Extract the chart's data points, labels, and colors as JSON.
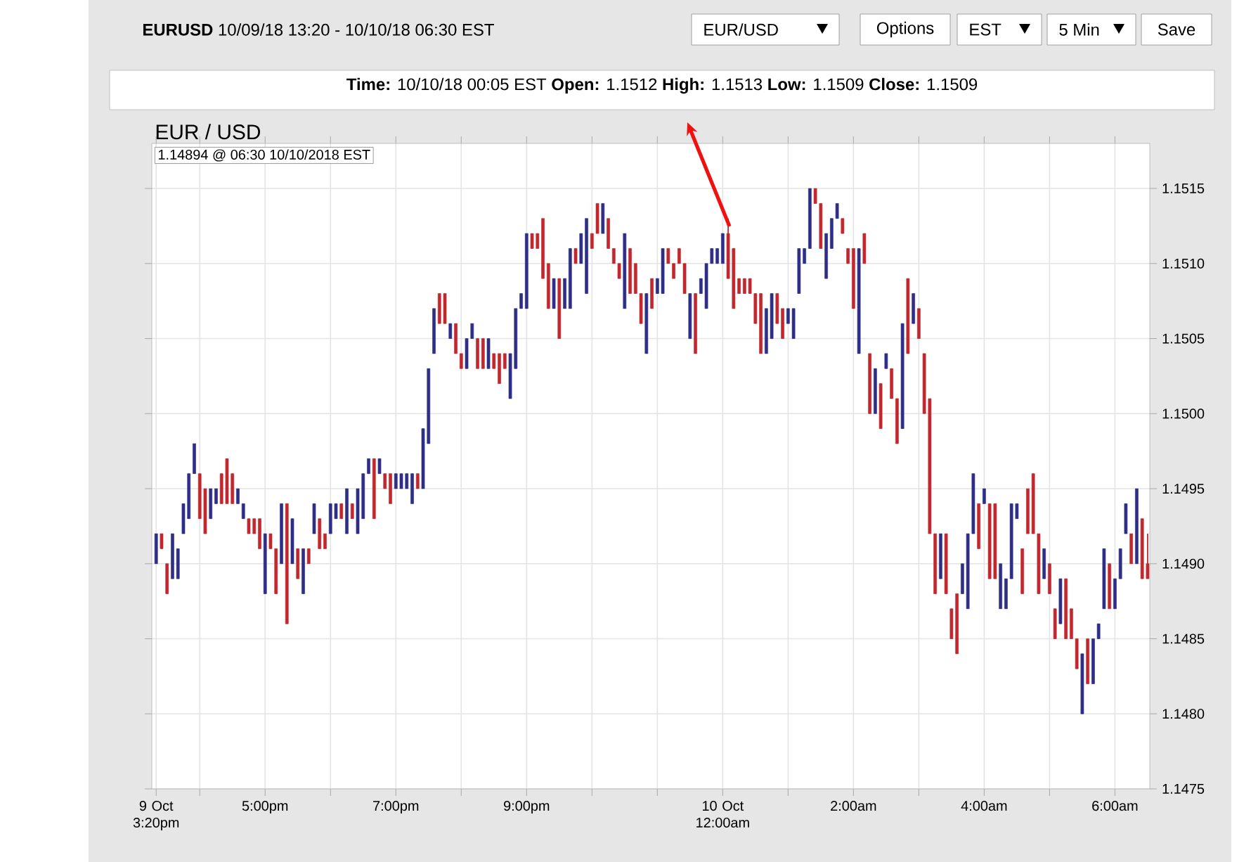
{
  "chart_data": {
    "type": "candlestick",
    "title": "EUR / USD",
    "subtitle": "**EURUSD** 10/09/18 13:20 - 10/10/18 06:30 EST",
    "annotations": [
      "1.14894 @ 06:30  10/10/2018 EST",
      "EUR/USD",
      "Options",
      "EST",
      "5 Min",
      "Save",
      "**Time:** 10/10/18 00:05 EST **Open:** 1.1512 **High:** 1.1513 **Low:** 1.1509 **Close:** 1.1509"
    ],
    "grid": true,
    "xlim": [
      "2018-10-09T15:16",
      "2018-10-10T06:32"
    ],
    "ylim": [
      1.1475,
      1.1518
    ],
    "xticks": [
      {
        "value": "2018-10-09T15:20",
        "label": "9 Oct 3:20pm"
      },
      {
        "value": "2018-10-09T16:00",
        "label": null
      },
      {
        "value": "2018-10-09T17:00",
        "label": "5:00pm"
      },
      {
        "value": "2018-10-09T18:00",
        "label": null
      },
      {
        "value": "2018-10-09T19:00",
        "label": "7:00pm"
      },
      {
        "value": "2018-10-09T20:00",
        "label": null
      },
      {
        "value": "2018-10-09T21:00",
        "label": "9:00pm"
      },
      {
        "value": "2018-10-09T22:00",
        "label": null
      },
      {
        "value": "2018-10-09T23:00",
        "label": null
      },
      {
        "value": "2018-10-10T00:00",
        "label": "10 Oct 12:00am"
      },
      {
        "value": "2018-10-10T01:00",
        "label": null
      },
      {
        "value": "2018-10-10T02:00",
        "label": "2:00am"
      },
      {
        "value": "2018-10-10T03:00",
        "label": null
      },
      {
        "value": "2018-10-10T04:00",
        "label": "4:00am"
      },
      {
        "value": "2018-10-10T05:00",
        "label": null
      },
      {
        "value": "2018-10-10T06:00",
        "label": "6:00am"
      }
    ],
    "yticks": [
      1.1475,
      {
        "value": 1.148,
        "label": "1.1480"
      },
      1.1485,
      {
        "value": 1.149,
        "label": "1.1490"
      },
      1.1495,
      {
        "value": 1.15,
        "label": "1.1500"
      },
      1.1505,
      {
        "value": 1.151,
        "label": "1.1510"
      },
      1.1515
    ],
    "x": [
      "2018-10-09T15:20",
      "2018-10-09T15:25",
      "2018-10-09T15:30",
      "2018-10-09T15:35",
      "2018-10-09T15:40",
      "2018-10-09T15:45",
      "2018-10-09T15:50",
      "2018-10-09T15:55",
      "2018-10-09T16:00",
      "2018-10-09T16:05",
      "2018-10-09T16:10",
      "2018-10-09T16:15",
      "2018-10-09T16:20",
      "2018-10-09T16:25",
      "2018-10-09T16:30",
      "2018-10-09T16:35",
      "2018-10-09T16:40",
      "2018-10-09T16:45",
      "2018-10-09T16:50",
      "2018-10-09T16:55",
      "2018-10-09T17:00",
      "2018-10-09T17:05",
      "2018-10-09T17:10",
      "2018-10-09T17:15",
      "2018-10-09T17:20",
      "2018-10-09T17:25",
      "2018-10-09T17:30",
      "2018-10-09T17:35",
      "2018-10-09T17:40",
      "2018-10-09T17:45",
      "2018-10-09T17:50",
      "2018-10-09T17:55",
      "2018-10-09T18:00",
      "2018-10-09T18:05",
      "2018-10-09T18:10",
      "2018-10-09T18:15",
      "2018-10-09T18:20",
      "2018-10-09T18:25",
      "2018-10-09T18:30",
      "2018-10-09T18:35",
      "2018-10-09T18:40",
      "2018-10-09T18:45",
      "2018-10-09T18:50",
      "2018-10-09T18:55",
      "2018-10-09T19:00",
      "2018-10-09T19:05",
      "2018-10-09T19:10",
      "2018-10-09T19:15",
      "2018-10-09T19:20",
      "2018-10-09T19:25",
      "2018-10-09T19:30",
      "2018-10-09T19:35",
      "2018-10-09T19:40",
      "2018-10-09T19:45",
      "2018-10-09T19:50",
      "2018-10-09T19:55",
      "2018-10-09T20:00",
      "2018-10-09T20:05",
      "2018-10-09T20:10",
      "2018-10-09T20:15",
      "2018-10-09T20:20",
      "2018-10-09T20:25",
      "2018-10-09T20:30",
      "2018-10-09T20:35",
      "2018-10-09T20:40",
      "2018-10-09T20:45",
      "2018-10-09T20:50",
      "2018-10-09T20:55",
      "2018-10-09T21:00",
      "2018-10-09T21:05",
      "2018-10-09T21:10",
      "2018-10-09T21:15",
      "2018-10-09T21:20",
      "2018-10-09T21:25",
      "2018-10-09T21:30",
      "2018-10-09T21:35",
      "2018-10-09T21:40",
      "2018-10-09T21:45",
      "2018-10-09T21:50",
      "2018-10-09T21:55",
      "2018-10-09T22:00",
      "2018-10-09T22:05",
      "2018-10-09T22:10",
      "2018-10-09T22:15",
      "2018-10-09T22:20",
      "2018-10-09T22:25",
      "2018-10-09T22:30",
      "2018-10-09T22:35",
      "2018-10-09T22:40",
      "2018-10-09T22:45",
      "2018-10-09T22:50",
      "2018-10-09T22:55",
      "2018-10-09T23:00",
      "2018-10-09T23:05",
      "2018-10-09T23:10",
      "2018-10-09T23:15",
      "2018-10-09T23:20",
      "2018-10-09T23:25",
      "2018-10-09T23:30",
      "2018-10-09T23:35",
      "2018-10-09T23:40",
      "2018-10-09T23:45",
      "2018-10-09T23:50",
      "2018-10-09T23:55",
      "2018-10-10T00:00",
      "2018-10-10T00:05",
      "2018-10-10T00:10",
      "2018-10-10T00:15",
      "2018-10-10T00:20",
      "2018-10-10T00:25",
      "2018-10-10T00:30",
      "2018-10-10T00:35",
      "2018-10-10T00:40",
      "2018-10-10T00:45",
      "2018-10-10T00:50",
      "2018-10-10T00:55",
      "2018-10-10T01:00",
      "2018-10-10T01:05",
      "2018-10-10T01:10",
      "2018-10-10T01:15",
      "2018-10-10T01:20",
      "2018-10-10T01:25",
      "2018-10-10T01:30",
      "2018-10-10T01:35",
      "2018-10-10T01:40",
      "2018-10-10T01:45",
      "2018-10-10T01:50",
      "2018-10-10T01:55",
      "2018-10-10T02:00",
      "2018-10-10T02:05",
      "2018-10-10T02:10",
      "2018-10-10T02:15",
      "2018-10-10T02:20",
      "2018-10-10T02:25",
      "2018-10-10T02:30",
      "2018-10-10T02:35",
      "2018-10-10T02:40",
      "2018-10-10T02:45",
      "2018-10-10T02:50",
      "2018-10-10T02:55",
      "2018-10-10T03:00",
      "2018-10-10T03:05",
      "2018-10-10T03:10",
      "2018-10-10T03:15",
      "2018-10-10T03:20",
      "2018-10-10T03:25",
      "2018-10-10T03:30",
      "2018-10-10T03:35",
      "2018-10-10T03:40",
      "2018-10-10T03:45",
      "2018-10-10T03:50",
      "2018-10-10T03:55",
      "2018-10-10T04:00",
      "2018-10-10T04:05",
      "2018-10-10T04:10",
      "2018-10-10T04:15",
      "2018-10-10T04:20",
      "2018-10-10T04:25",
      "2018-10-10T04:30",
      "2018-10-10T04:35",
      "2018-10-10T04:40",
      "2018-10-10T04:45",
      "2018-10-10T04:50",
      "2018-10-10T04:55",
      "2018-10-10T05:00",
      "2018-10-10T05:05",
      "2018-10-10T05:10",
      "2018-10-10T05:15",
      "2018-10-10T05:20",
      "2018-10-10T05:25",
      "2018-10-10T05:30",
      "2018-10-10T05:35",
      "2018-10-10T05:40",
      "2018-10-10T05:45",
      "2018-10-10T05:50",
      "2018-10-10T05:55",
      "2018-10-10T06:00",
      "2018-10-10T06:05",
      "2018-10-10T06:10",
      "2018-10-10T06:15",
      "2018-10-10T06:20",
      "2018-10-10T06:25",
      "2018-10-10T06:30"
    ],
    "ohlc": [
      [
        1.149,
        1.1492,
        1.149,
        1.1492
      ],
      [
        1.1492,
        1.1492,
        1.1491,
        1.1491
      ],
      [
        1.149,
        1.149,
        1.1488,
        1.1488
      ],
      [
        1.1489,
        1.1492,
        1.1489,
        1.1492
      ],
      [
        1.1489,
        1.1491,
        1.1489,
        1.1491
      ],
      [
        1.1492,
        1.1494,
        1.1492,
        1.1494
      ],
      [
        1.1493,
        1.1496,
        1.1493,
        1.1496
      ],
      [
        1.1496,
        1.1498,
        1.1496,
        1.1498
      ],
      [
        1.1496,
        1.1496,
        1.1493,
        1.1493
      ],
      [
        1.1495,
        1.1495,
        1.1492,
        1.1492
      ],
      [
        1.1493,
        1.1495,
        1.1493,
        1.1495
      ],
      [
        1.1494,
        1.1495,
        1.1494,
        1.1495
      ],
      [
        1.1496,
        1.1496,
        1.1494,
        1.1494
      ],
      [
        1.1497,
        1.1497,
        1.1494,
        1.1494
      ],
      [
        1.1496,
        1.1496,
        1.1494,
        1.1494
      ],
      [
        1.1494,
        1.1495,
        1.1494,
        1.1495
      ],
      [
        1.1493,
        1.1494,
        1.1493,
        1.1494
      ],
      [
        1.1493,
        1.1493,
        1.1492,
        1.1492
      ],
      [
        1.1493,
        1.1493,
        1.1492,
        1.1492
      ],
      [
        1.1493,
        1.1493,
        1.1491,
        1.1491
      ],
      [
        1.1488,
        1.1492,
        1.1488,
        1.1492
      ],
      [
        1.1492,
        1.1492,
        1.1491,
        1.1491
      ],
      [
        1.1491,
        1.1491,
        1.1488,
        1.1488
      ],
      [
        1.149,
        1.1494,
        1.149,
        1.1494
      ],
      [
        1.1494,
        1.1494,
        1.1486,
        1.1486
      ],
      [
        1.149,
        1.1493,
        1.149,
        1.1493
      ],
      [
        1.1491,
        1.1491,
        1.1489,
        1.1489
      ],
      [
        1.1488,
        1.1491,
        1.1488,
        1.1491
      ],
      [
        1.1491,
        1.1491,
        1.149,
        1.149
      ],
      [
        1.1492,
        1.1494,
        1.1492,
        1.1494
      ],
      [
        1.1493,
        1.1493,
        1.1491,
        1.1491
      ],
      [
        1.1492,
        1.1492,
        1.1491,
        1.1491
      ],
      [
        1.1492,
        1.1494,
        1.1492,
        1.1494
      ],
      [
        1.1493,
        1.1494,
        1.1493,
        1.1494
      ],
      [
        1.1494,
        1.1494,
        1.1493,
        1.1493
      ],
      [
        1.1492,
        1.1495,
        1.1492,
        1.1495
      ],
      [
        1.1494,
        1.1494,
        1.1493,
        1.1493
      ],
      [
        1.1492,
        1.1495,
        1.1492,
        1.1495
      ],
      [
        1.1493,
        1.1496,
        1.1493,
        1.1496
      ],
      [
        1.1496,
        1.1497,
        1.1496,
        1.1497
      ],
      [
        1.1497,
        1.1497,
        1.1493,
        1.1493
      ],
      [
        1.1496,
        1.1497,
        1.1496,
        1.1497
      ],
      [
        1.1496,
        1.1496,
        1.1495,
        1.1495
      ],
      [
        1.1496,
        1.1496,
        1.1494,
        1.1494
      ],
      [
        1.1495,
        1.1496,
        1.1495,
        1.1496
      ],
      [
        1.1495,
        1.1496,
        1.1495,
        1.1496
      ],
      [
        1.1495,
        1.1496,
        1.1495,
        1.1496
      ],
      [
        1.1494,
        1.1496,
        1.1494,
        1.1496
      ],
      [
        1.1496,
        1.1496,
        1.1495,
        1.1495
      ],
      [
        1.1495,
        1.1499,
        1.1495,
        1.1499
      ],
      [
        1.1498,
        1.1503,
        1.1498,
        1.1503
      ],
      [
        1.1504,
        1.1507,
        1.1504,
        1.1507
      ],
      [
        1.1508,
        1.1508,
        1.1506,
        1.1506
      ],
      [
        1.1508,
        1.1508,
        1.1506,
        1.1506
      ],
      [
        1.1505,
        1.1506,
        1.1505,
        1.1506
      ],
      [
        1.1506,
        1.1506,
        1.1504,
        1.1504
      ],
      [
        1.1504,
        1.1504,
        1.1503,
        1.1503
      ],
      [
        1.1503,
        1.1505,
        1.1503,
        1.1505
      ],
      [
        1.1505,
        1.1506,
        1.1505,
        1.1506
      ],
      [
        1.1505,
        1.1505,
        1.1503,
        1.1503
      ],
      [
        1.1505,
        1.1505,
        1.1503,
        1.1503
      ],
      [
        1.1503,
        1.1505,
        1.1503,
        1.1505
      ],
      [
        1.1504,
        1.1504,
        1.1503,
        1.1503
      ],
      [
        1.1504,
        1.1504,
        1.1502,
        1.1502
      ],
      [
        1.1504,
        1.1504,
        1.1503,
        1.1503
      ],
      [
        1.1501,
        1.1504,
        1.1501,
        1.1504
      ],
      [
        1.1503,
        1.1507,
        1.1503,
        1.1507
      ],
      [
        1.1507,
        1.1508,
        1.1507,
        1.1508
      ],
      [
        1.1507,
        1.1512,
        1.1507,
        1.1512
      ],
      [
        1.1512,
        1.1512,
        1.1511,
        1.1511
      ],
      [
        1.1512,
        1.1512,
        1.1511,
        1.1511
      ],
      [
        1.1513,
        1.1513,
        1.1509,
        1.1509
      ],
      [
        1.151,
        1.151,
        1.1507,
        1.1507
      ],
      [
        1.1507,
        1.1509,
        1.1507,
        1.1509
      ],
      [
        1.1509,
        1.1509,
        1.1505,
        1.1505
      ],
      [
        1.1507,
        1.1509,
        1.1507,
        1.1509
      ],
      [
        1.1507,
        1.1511,
        1.1507,
        1.1511
      ],
      [
        1.1511,
        1.1511,
        1.151,
        1.151
      ],
      [
        1.151,
        1.1512,
        1.151,
        1.1512
      ],
      [
        1.1508,
        1.1513,
        1.1508,
        1.1513
      ],
      [
        1.1512,
        1.1512,
        1.1511,
        1.1511
      ],
      [
        1.1514,
        1.1514,
        1.1512,
        1.1512
      ],
      [
        1.1512,
        1.1514,
        1.1512,
        1.1514
      ],
      [
        1.1513,
        1.1513,
        1.1511,
        1.1511
      ],
      [
        1.1511,
        1.1511,
        1.151,
        1.151
      ],
      [
        1.151,
        1.151,
        1.1509,
        1.1509
      ],
      [
        1.1507,
        1.1512,
        1.1507,
        1.1512
      ],
      [
        1.1511,
        1.1511,
        1.1508,
        1.1508
      ],
      [
        1.151,
        1.151,
        1.1508,
        1.1508
      ],
      [
        1.1508,
        1.1508,
        1.1506,
        1.1506
      ],
      [
        1.1504,
        1.1508,
        1.1504,
        1.1508
      ],
      [
        1.1509,
        1.1509,
        1.1507,
        1.1507
      ],
      [
        1.1508,
        1.1509,
        1.1508,
        1.1509
      ],
      [
        1.1508,
        1.1511,
        1.1508,
        1.1511
      ],
      [
        1.1511,
        1.1511,
        1.151,
        1.151
      ],
      [
        1.151,
        1.151,
        1.1509,
        1.1509
      ],
      [
        1.1511,
        1.1511,
        1.151,
        1.151
      ],
      [
        1.151,
        1.151,
        1.1508,
        1.1508
      ],
      [
        1.1505,
        1.1508,
        1.1505,
        1.1508
      ],
      [
        1.1508,
        1.1508,
        1.1504,
        1.1504
      ],
      [
        1.1508,
        1.1509,
        1.1508,
        1.1509
      ],
      [
        1.1507,
        1.151,
        1.1507,
        1.151
      ],
      [
        1.151,
        1.1511,
        1.151,
        1.1511
      ],
      [
        1.151,
        1.1511,
        1.151,
        1.1511
      ],
      [
        1.151,
        1.1512,
        1.151,
        1.1512
      ],
      [
        1.1512,
        1.1513,
        1.1509,
        1.1509
      ],
      [
        1.1511,
        1.1511,
        1.1507,
        1.1507
      ],
      [
        1.1509,
        1.1509,
        1.1508,
        1.1508
      ],
      [
        1.1509,
        1.1509,
        1.1508,
        1.1508
      ],
      [
        1.1509,
        1.1509,
        1.1508,
        1.1508
      ],
      [
        1.1508,
        1.1508,
        1.1506,
        1.1506
      ],
      [
        1.1508,
        1.1508,
        1.1504,
        1.1504
      ],
      [
        1.1504,
        1.1507,
        1.1504,
        1.1507
      ],
      [
        1.1505,
        1.1508,
        1.1505,
        1.1508
      ],
      [
        1.1508,
        1.1508,
        1.1506,
        1.1506
      ],
      [
        1.1507,
        1.1507,
        1.1505,
        1.1505
      ],
      [
        1.1506,
        1.1507,
        1.1506,
        1.1507
      ],
      [
        1.1505,
        1.1507,
        1.1505,
        1.1507
      ],
      [
        1.1508,
        1.1511,
        1.1508,
        1.1511
      ],
      [
        1.151,
        1.1511,
        1.151,
        1.1511
      ],
      [
        1.1511,
        1.1515,
        1.1511,
        1.1515
      ],
      [
        1.1515,
        1.1515,
        1.1514,
        1.1514
      ],
      [
        1.1514,
        1.1514,
        1.1511,
        1.1511
      ],
      [
        1.1509,
        1.1512,
        1.1509,
        1.1512
      ],
      [
        1.1511,
        1.1513,
        1.1511,
        1.1513
      ],
      [
        1.1513,
        1.1514,
        1.1513,
        1.1514
      ],
      [
        1.1513,
        1.1513,
        1.1512,
        1.1512
      ],
      [
        1.1511,
        1.1511,
        1.151,
        1.151
      ],
      [
        1.1511,
        1.1511,
        1.1507,
        1.1507
      ],
      [
        1.1504,
        1.1511,
        1.1504,
        1.1511
      ],
      [
        1.1512,
        1.1512,
        1.151,
        1.151
      ],
      [
        1.1504,
        1.1504,
        1.15,
        1.15
      ],
      [
        1.15,
        1.1503,
        1.15,
        1.1503
      ],
      [
        1.1502,
        1.1502,
        1.1499,
        1.1499
      ],
      [
        1.1503,
        1.1504,
        1.1503,
        1.1504
      ],
      [
        1.1503,
        1.1503,
        1.1501,
        1.1501
      ],
      [
        1.1501,
        1.1501,
        1.1498,
        1.1498
      ],
      [
        1.1499,
        1.1506,
        1.1499,
        1.1506
      ],
      [
        1.1509,
        1.1509,
        1.1504,
        1.1504
      ],
      [
        1.1506,
        1.1508,
        1.1506,
        1.1508
      ],
      [
        1.1507,
        1.1507,
        1.1505,
        1.1505
      ],
      [
        1.1504,
        1.1504,
        1.15,
        1.15
      ],
      [
        1.1501,
        1.1501,
        1.1492,
        1.1492
      ],
      [
        1.1492,
        1.1492,
        1.1488,
        1.1488
      ],
      [
        1.1489,
        1.1492,
        1.1489,
        1.1492
      ],
      [
        1.1492,
        1.1492,
        1.1488,
        1.1488
      ],
      [
        1.1487,
        1.1487,
        1.1485,
        1.1485
      ],
      [
        1.1488,
        1.1488,
        1.1484,
        1.1484
      ],
      [
        1.1488,
        1.149,
        1.1488,
        1.149
      ],
      [
        1.1487,
        1.1492,
        1.1487,
        1.1492
      ],
      [
        1.1492,
        1.1496,
        1.1492,
        1.1496
      ],
      [
        1.1494,
        1.1494,
        1.1491,
        1.1491
      ],
      [
        1.1494,
        1.1495,
        1.1494,
        1.1495
      ],
      [
        1.1494,
        1.1494,
        1.1489,
        1.1489
      ],
      [
        1.1494,
        1.1494,
        1.1489,
        1.1489
      ],
      [
        1.1487,
        1.149,
        1.1487,
        1.149
      ],
      [
        1.1487,
        1.1489,
        1.1487,
        1.1489
      ],
      [
        1.1489,
        1.1494,
        1.1489,
        1.1494
      ],
      [
        1.1493,
        1.1494,
        1.1493,
        1.1494
      ],
      [
        1.1491,
        1.1491,
        1.1488,
        1.1488
      ],
      [
        1.1495,
        1.1495,
        1.1492,
        1.1492
      ],
      [
        1.1496,
        1.1496,
        1.1492,
        1.1492
      ],
      [
        1.1492,
        1.1492,
        1.1488,
        1.1488
      ],
      [
        1.1489,
        1.1491,
        1.1489,
        1.1491
      ],
      [
        1.149,
        1.149,
        1.1488,
        1.1488
      ],
      [
        1.1487,
        1.1487,
        1.1485,
        1.1485
      ],
      [
        1.1486,
        1.1489,
        1.1486,
        1.1489
      ],
      [
        1.1489,
        1.1489,
        1.1485,
        1.1485
      ],
      [
        1.1487,
        1.1487,
        1.1485,
        1.1485
      ],
      [
        1.1485,
        1.1485,
        1.1483,
        1.1483
      ],
      [
        1.148,
        1.1484,
        1.148,
        1.1484
      ],
      [
        1.1485,
        1.1485,
        1.1482,
        1.1482
      ],
      [
        1.1482,
        1.1485,
        1.1482,
        1.1485
      ],
      [
        1.1485,
        1.1486,
        1.1485,
        1.1486
      ],
      [
        1.1487,
        1.1491,
        1.1487,
        1.1491
      ],
      [
        1.149,
        1.149,
        1.1487,
        1.1487
      ],
      [
        1.1487,
        1.1489,
        1.1487,
        1.1489
      ],
      [
        1.1489,
        1.1491,
        1.1489,
        1.1491
      ],
      [
        1.1492,
        1.1494,
        1.1492,
        1.1494
      ],
      [
        1.1492,
        1.1492,
        1.149,
        1.149
      ],
      [
        1.149,
        1.1495,
        1.149,
        1.1495
      ],
      [
        1.1493,
        1.1493,
        1.1489,
        1.1489
      ],
      [
        1.149,
        1.1492,
        1.1489,
        1.1489
      ]
    ],
    "colors": [
      "#2e2e86",
      "#c1272d",
      "#c1272d",
      "#2e2e86",
      "#2e2e86",
      "#2e2e86",
      "#2e2e86",
      "#2e2e86",
      "#c1272d",
      "#c1272d",
      "#2e2e86",
      "#2e2e86",
      "#c1272d",
      "#c1272d",
      "#c1272d",
      "#2e2e86",
      "#2e2e86",
      "#c1272d",
      "#c1272d",
      "#c1272d",
      "#2e2e86",
      "#c1272d",
      "#c1272d",
      "#2e2e86",
      "#c1272d",
      "#2e2e86",
      "#c1272d",
      "#2e2e86",
      "#c1272d",
      "#2e2e86",
      "#c1272d",
      "#c1272d",
      "#2e2e86",
      "#2e2e86",
      "#c1272d",
      "#2e2e86",
      "#c1272d",
      "#2e2e86",
      "#2e2e86",
      "#2e2e86",
      "#c1272d",
      "#2e2e86",
      "#c1272d",
      "#c1272d",
      "#2e2e86",
      "#2e2e86",
      "#2e2e86",
      "#2e2e86",
      "#c1272d",
      "#2e2e86",
      "#2e2e86",
      "#2e2e86",
      "#c1272d",
      "#c1272d",
      "#2e2e86",
      "#c1272d",
      "#c1272d",
      "#2e2e86",
      "#2e2e86",
      "#c1272d",
      "#c1272d",
      "#2e2e86",
      "#c1272d",
      "#c1272d",
      "#c1272d",
      "#2e2e86",
      "#2e2e86",
      "#2e2e86",
      "#2e2e86",
      "#c1272d",
      "#c1272d",
      "#c1272d",
      "#c1272d",
      "#2e2e86",
      "#c1272d",
      "#2e2e86",
      "#2e2e86",
      "#c1272d",
      "#2e2e86",
      "#2e2e86",
      "#c1272d",
      "#c1272d",
      "#2e2e86",
      "#c1272d",
      "#c1272d",
      "#c1272d",
      "#2e2e86",
      "#c1272d",
      "#c1272d",
      "#c1272d",
      "#2e2e86",
      "#c1272d",
      "#2e2e86",
      "#2e2e86",
      "#c1272d",
      "#c1272d",
      "#c1272d",
      "#c1272d",
      "#2e2e86",
      "#c1272d",
      "#2e2e86",
      "#2e2e86",
      "#2e2e86",
      "#2e2e86",
      "#2e2e86",
      "#c1272d",
      "#c1272d",
      "#c1272d",
      "#c1272d",
      "#c1272d",
      "#c1272d",
      "#c1272d",
      "#2e2e86",
      "#2e2e86",
      "#c1272d",
      "#c1272d",
      "#2e2e86",
      "#2e2e86",
      "#2e2e86",
      "#2e2e86",
      "#2e2e86",
      "#c1272d",
      "#c1272d",
      "#2e2e86",
      "#2e2e86",
      "#2e2e86",
      "#c1272d",
      "#c1272d",
      "#c1272d",
      "#2e2e86",
      "#c1272d",
      "#c1272d",
      "#2e2e86",
      "#c1272d",
      "#2e2e86",
      "#c1272d",
      "#c1272d",
      "#2e2e86",
      "#c1272d",
      "#2e2e86",
      "#c1272d",
      "#c1272d",
      "#c1272d",
      "#c1272d",
      "#2e2e86",
      "#c1272d",
      "#c1272d",
      "#c1272d",
      "#2e2e86",
      "#2e2e86",
      "#2e2e86",
      "#c1272d",
      "#2e2e86",
      "#c1272d",
      "#c1272d",
      "#2e2e86",
      "#2e2e86",
      "#2e2e86",
      "#2e2e86",
      "#c1272d",
      "#c1272d",
      "#c1272d",
      "#c1272d",
      "#2e2e86",
      "#c1272d",
      "#c1272d",
      "#2e2e86",
      "#c1272d",
      "#c1272d",
      "#c1272d",
      "#2e2e86",
      "#c1272d",
      "#2e2e86",
      "#2e2e86",
      "#2e2e86",
      "#c1272d",
      "#2e2e86",
      "#2e2e86",
      "#2e2e86",
      "#c1272d",
      "#2e2e86",
      "#c1272d",
      "#c1272d"
    ]
  }
}
